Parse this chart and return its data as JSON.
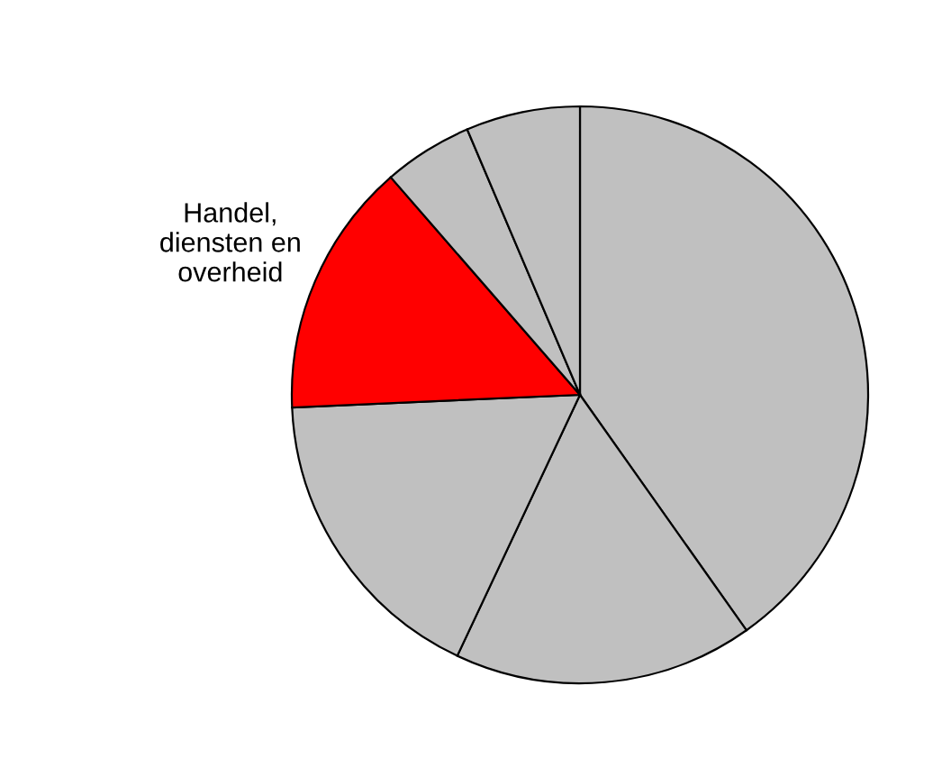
{
  "chart_data": {
    "type": "pie",
    "categories": [
      null,
      null,
      null,
      "Handel,\ndiensten en\noverheid",
      null,
      null
    ],
    "values": [
      40.2,
      16.8,
      17.3,
      14.3,
      5.0,
      6.4
    ],
    "colors": [
      "#c0c0c0",
      "#c0c0c0",
      "#c0c0c0",
      "#ff0000",
      "#c0c0c0",
      "#c0c0c0"
    ]
  }
}
